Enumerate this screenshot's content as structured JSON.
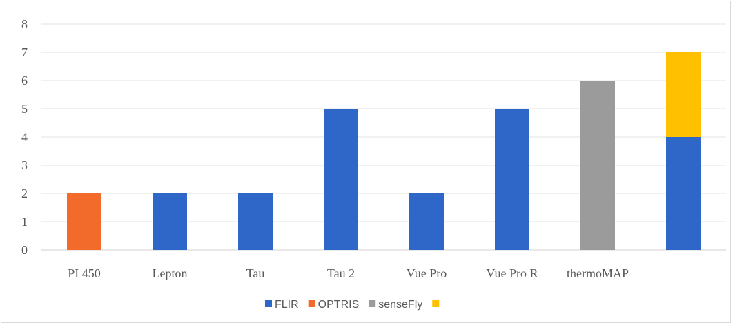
{
  "chart_data": {
    "type": "bar",
    "stacked": true,
    "title": "",
    "xlabel": "",
    "ylabel": "",
    "ylim": [
      0,
      8
    ],
    "yticks": [
      0,
      1,
      2,
      3,
      4,
      5,
      6,
      7,
      8
    ],
    "grid": true,
    "legend_position": "bottom",
    "categories": [
      "PI 450",
      "Lepton",
      "Tau",
      "Tau 2",
      "Vue Pro",
      "Vue Pro R",
      "thermoMAP",
      ""
    ],
    "series": [
      {
        "name": "FLIR",
        "color": "#2f67c8",
        "values": [
          0,
          2,
          2,
          5,
          2,
          5,
          0,
          4
        ]
      },
      {
        "name": "OPTRIS",
        "color": "#f26b2a",
        "values": [
          2,
          0,
          0,
          0,
          0,
          0,
          0,
          0
        ]
      },
      {
        "name": "senseFly",
        "color": "#9b9b9b",
        "values": [
          0,
          0,
          0,
          0,
          0,
          0,
          6,
          0
        ]
      },
      {
        "name": "",
        "color": "#ffc000",
        "values": [
          0,
          0,
          0,
          0,
          0,
          0,
          0,
          3
        ]
      }
    ]
  }
}
